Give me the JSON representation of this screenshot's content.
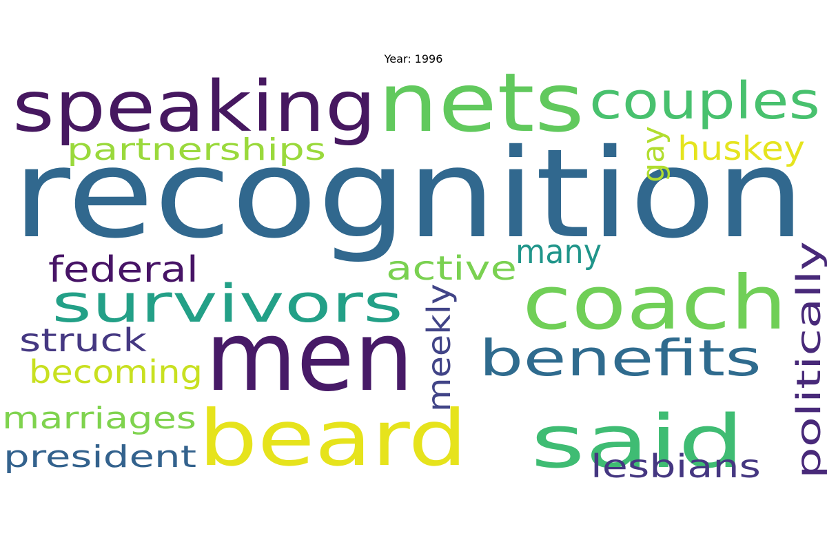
{
  "title": "Year: 1996",
  "words": [
    {
      "text": "recognition",
      "color": "#31688e"
    },
    {
      "text": "men",
      "color": "#471a67"
    },
    {
      "text": "nets",
      "color": "#61c95d"
    },
    {
      "text": "speaking",
      "color": "#461860"
    },
    {
      "text": "coach",
      "color": "#70cf57"
    },
    {
      "text": "beard",
      "color": "#e6e31c"
    },
    {
      "text": "said",
      "color": "#3fbc73"
    },
    {
      "text": "couples",
      "color": "#48c16e"
    },
    {
      "text": "survivors",
      "color": "#23a087"
    },
    {
      "text": "benefits",
      "color": "#2f6b8e"
    },
    {
      "text": "partnerships",
      "color": "#9ad93c"
    },
    {
      "text": "huskey",
      "color": "#e5e41e"
    },
    {
      "text": "gay",
      "color": "#b1dd2f"
    },
    {
      "text": "many",
      "color": "#20958a"
    },
    {
      "text": "federal",
      "color": "#471466"
    },
    {
      "text": "active",
      "color": "#7ad151"
    },
    {
      "text": "meekly",
      "color": "#414487"
    },
    {
      "text": "politically",
      "color": "#482979"
    },
    {
      "text": "struck",
      "color": "#453882"
    },
    {
      "text": "becoming",
      "color": "#c8e020"
    },
    {
      "text": "marriages",
      "color": "#7fd34e"
    },
    {
      "text": "president",
      "color": "#33628d"
    },
    {
      "text": "lesbians",
      "color": "#453781"
    }
  ]
}
